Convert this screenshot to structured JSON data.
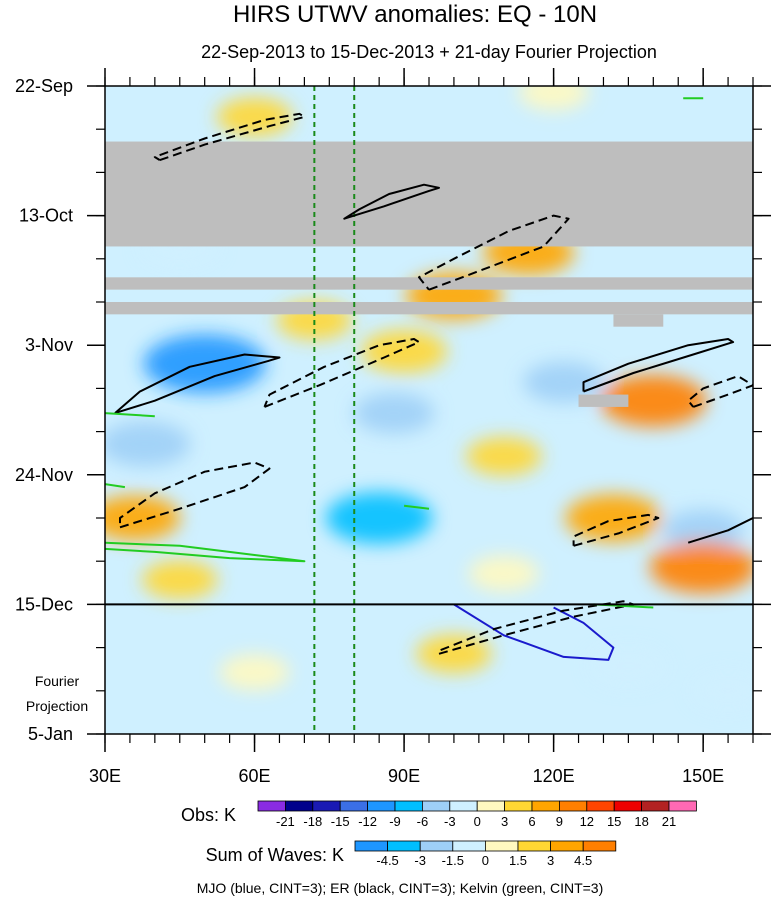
{
  "chart_data": {
    "type": "heatmap",
    "title": "HIRS UTWV anomalies: EQ - 10N",
    "subtitle": "22-Sep-2013 to 15-Dec-2013 + 21-day Fourier Projection",
    "x_axis": {
      "label": "",
      "range": [
        30,
        160
      ],
      "units": "degrees E",
      "ticks": [
        {
          "value": 30,
          "label": "30E"
        },
        {
          "value": 60,
          "label": "60E"
        },
        {
          "value": 90,
          "label": "90E"
        },
        {
          "value": 120,
          "label": "120E"
        },
        {
          "value": 150,
          "label": "150E"
        }
      ],
      "minor_step": 5
    },
    "y_axis": {
      "label": "",
      "range_days": [
        0,
        105
      ],
      "units": "days since 22-Sep-2013",
      "ticks": [
        {
          "value": 0,
          "label": "22-Sep"
        },
        {
          "value": 21,
          "label": "13-Oct"
        },
        {
          "value": 42,
          "label": "3-Nov"
        },
        {
          "value": 63,
          "label": "24-Nov"
        },
        {
          "value": 84,
          "label": "15-Dec"
        },
        {
          "value": 105,
          "label": "5-Jan"
        }
      ],
      "minor_step": 7,
      "projection_label_line1": "Fourier",
      "projection_label_line2": "Projection"
    },
    "projection_start_day": 84,
    "reference_longitudes": [
      72,
      80
    ],
    "missing_data_bands": [
      {
        "day_start": 9,
        "day_end": 26,
        "lon_start": 30,
        "lon_end": 160
      },
      {
        "day_start": 31,
        "day_end": 33,
        "lon_start": 30,
        "lon_end": 160
      },
      {
        "day_start": 35,
        "day_end": 37,
        "lon_start": 30,
        "lon_end": 160
      },
      {
        "day_start": 37,
        "day_end": 39,
        "lon_start": 132,
        "lon_end": 142
      },
      {
        "day_start": 50,
        "day_end": 52,
        "lon_start": 125,
        "lon_end": 135
      }
    ],
    "anomaly_blobs": [
      {
        "lon": 50,
        "day": 45,
        "value": -12
      },
      {
        "lon": 85,
        "day": 70,
        "value": -9
      },
      {
        "lon": 38,
        "day": 58,
        "value": -6
      },
      {
        "lon": 88,
        "day": 53,
        "value": -4
      },
      {
        "lon": 122,
        "day": 48,
        "value": -4
      },
      {
        "lon": 150,
        "day": 72,
        "value": -4
      },
      {
        "lon": 135,
        "day": 94,
        "value": -3
      },
      {
        "lon": 155,
        "day": 98,
        "value": -2
      },
      {
        "lon": 45,
        "day": 26,
        "value": -3
      },
      {
        "lon": 140,
        "day": 51,
        "value": 9
      },
      {
        "lon": 132,
        "day": 70,
        "value": 7
      },
      {
        "lon": 150,
        "day": 78,
        "value": 9
      },
      {
        "lon": 115,
        "day": 27,
        "value": 6
      },
      {
        "lon": 100,
        "day": 34,
        "value": 7
      },
      {
        "lon": 36,
        "day": 70,
        "value": 6
      },
      {
        "lon": 60,
        "day": 5,
        "value": 3
      },
      {
        "lon": 90,
        "day": 43,
        "value": 5
      },
      {
        "lon": 72,
        "day": 38,
        "value": 3
      },
      {
        "lon": 100,
        "day": 92,
        "value": 3
      },
      {
        "lon": 60,
        "day": 95,
        "value": 2
      },
      {
        "lon": 120,
        "day": 1,
        "value": 2
      },
      {
        "lon": 110,
        "day": 60,
        "value": 3
      },
      {
        "lon": 45,
        "day": 80,
        "value": 3
      },
      {
        "lon": 110,
        "day": 79,
        "value": 2
      }
    ],
    "wave_contours": [
      {
        "name": "MJO",
        "style": "solid",
        "color": "#1a1acc",
        "points": [
          [
            100,
            84
          ],
          [
            110,
            89
          ],
          [
            122,
            92.5
          ],
          [
            131,
            93
          ],
          [
            132,
            91
          ],
          [
            126,
            87
          ],
          [
            120,
            84.5
          ]
        ]
      },
      {
        "name": "ER",
        "style": "solid",
        "color": "#000000",
        "points": [
          [
            32,
            53
          ],
          [
            40,
            51
          ],
          [
            52,
            47
          ],
          [
            63,
            44.5
          ],
          [
            65,
            44
          ],
          [
            58,
            43.5
          ],
          [
            47,
            45.5
          ],
          [
            37,
            49.5
          ],
          [
            32,
            53
          ]
        ]
      },
      {
        "name": "ER",
        "style": "solid",
        "color": "#000000",
        "points": [
          [
            80,
            21
          ],
          [
            86,
            19.5
          ],
          [
            95,
            17
          ],
          [
            97,
            16.5
          ],
          [
            94,
            16
          ],
          [
            87,
            17.5
          ],
          [
            81,
            20
          ],
          [
            78,
            21.5
          ],
          [
            80,
            21
          ]
        ]
      },
      {
        "name": "ER",
        "style": "solid",
        "color": "#000000",
        "points": [
          [
            126,
            49.5
          ],
          [
            136,
            46.5
          ],
          [
            148,
            43.5
          ],
          [
            156,
            41.5
          ],
          [
            155,
            41
          ],
          [
            147,
            42
          ],
          [
            135,
            45
          ],
          [
            126,
            48
          ],
          [
            126,
            49.5
          ]
        ]
      },
      {
        "name": "ER",
        "style": "solid",
        "color": "#000000",
        "points": [
          [
            147,
            74
          ],
          [
            155,
            72
          ],
          [
            160,
            70
          ]
        ]
      },
      {
        "name": "ER",
        "style": "dashed",
        "color": "#000000",
        "points": [
          [
            41,
            12
          ],
          [
            50,
            9.5
          ],
          [
            63,
            6.5
          ],
          [
            70,
            5
          ],
          [
            69,
            4.5
          ],
          [
            62,
            5.5
          ],
          [
            50,
            8.5
          ],
          [
            40,
            11.5
          ],
          [
            41,
            12
          ]
        ]
      },
      {
        "name": "ER",
        "style": "dashed",
        "color": "#000000",
        "points": [
          [
            95,
            33
          ],
          [
            105,
            30
          ],
          [
            118,
            26
          ],
          [
            123,
            21.5
          ],
          [
            120,
            21
          ],
          [
            111,
            23.5
          ],
          [
            100,
            28
          ],
          [
            93,
            31
          ],
          [
            95,
            33
          ]
        ]
      },
      {
        "name": "ER",
        "style": "dashed",
        "color": "#000000",
        "points": [
          [
            62,
            52
          ],
          [
            73,
            48.5
          ],
          [
            86,
            44
          ],
          [
            93,
            41.5
          ],
          [
            92,
            41
          ],
          [
            85,
            42
          ],
          [
            74,
            45.5
          ],
          [
            63,
            50
          ],
          [
            62,
            52
          ]
        ]
      },
      {
        "name": "ER",
        "style": "dashed",
        "color": "#000000",
        "points": [
          [
            33,
            71.5
          ],
          [
            45,
            68.5
          ],
          [
            58,
            65
          ],
          [
            63,
            62
          ],
          [
            60,
            61
          ],
          [
            50,
            62.5
          ],
          [
            40,
            66
          ],
          [
            33,
            70
          ],
          [
            33,
            71.5
          ]
        ]
      },
      {
        "name": "ER",
        "style": "dashed",
        "color": "#000000",
        "points": [
          [
            124,
            74.5
          ],
          [
            133,
            72.5
          ],
          [
            141,
            70
          ],
          [
            139,
            69.5
          ],
          [
            131,
            70.5
          ],
          [
            124,
            73
          ],
          [
            124,
            74.5
          ]
        ]
      },
      {
        "name": "ER",
        "style": "dashed",
        "color": "#000000",
        "points": [
          [
            148,
            52
          ],
          [
            155,
            50
          ],
          [
            160,
            48.5
          ],
          [
            157,
            47
          ],
          [
            150,
            49
          ],
          [
            147,
            51
          ],
          [
            148,
            52
          ]
        ]
      },
      {
        "name": "ER",
        "style": "dashed",
        "color": "#000000",
        "points": [
          [
            97,
            92
          ],
          [
            110,
            89
          ],
          [
            124,
            86
          ],
          [
            136,
            84
          ],
          [
            134,
            83.5
          ],
          [
            122,
            85
          ],
          [
            108,
            88
          ],
          [
            97,
            91.5
          ],
          [
            97,
            92
          ]
        ]
      },
      {
        "name": "Kelvin",
        "style": "solid",
        "color": "#22cc22",
        "points": [
          [
            146,
            2
          ],
          [
            150,
            2
          ]
        ]
      },
      {
        "name": "Kelvin",
        "style": "solid",
        "color": "#22cc22",
        "points": [
          [
            30,
            53
          ],
          [
            40,
            53.5
          ]
        ]
      },
      {
        "name": "Kelvin",
        "style": "solid",
        "color": "#22cc22",
        "points": [
          [
            30,
            64.5
          ],
          [
            34,
            65
          ]
        ]
      },
      {
        "name": "Kelvin",
        "style": "solid",
        "color": "#22cc22",
        "points": [
          [
            30,
            75
          ],
          [
            40,
            75.5
          ],
          [
            55,
            76.5
          ],
          [
            70,
            77
          ],
          [
            60,
            76
          ],
          [
            45,
            74.5
          ],
          [
            30,
            74
          ]
        ]
      },
      {
        "name": "Kelvin",
        "style": "solid",
        "color": "#22cc22",
        "points": [
          [
            90,
            68
          ],
          [
            95,
            68.5
          ]
        ]
      },
      {
        "name": "Kelvin",
        "style": "solid",
        "color": "#22cc22",
        "points": [
          [
            128,
            84
          ],
          [
            140,
            84.5
          ]
        ]
      }
    ],
    "obs_colorbar": {
      "title": "Obs: K",
      "labels": [
        "-21",
        "-18",
        "-15",
        "-12",
        "-9",
        "-6",
        "-3",
        "0",
        "3",
        "6",
        "9",
        "12",
        "15",
        "18",
        "21"
      ],
      "colors": [
        "#8a2be2",
        "#00008b",
        "#1a1ab4",
        "#3b6fe6",
        "#1e96ff",
        "#00bfff",
        "#9ecff7",
        "#cff0ff",
        "#fff8c0",
        "#ffd733",
        "#ffa500",
        "#ff7f00",
        "#ff4500",
        "#ee0000",
        "#b22222",
        "#ff69b4"
      ]
    },
    "waves_colorbar": {
      "title": "Sum of Waves: K",
      "labels": [
        "-4.5",
        "-3",
        "-1.5",
        "0",
        "1.5",
        "3",
        "4.5"
      ],
      "colors": [
        "#1e96ff",
        "#00bfff",
        "#9ecff7",
        "#cff0ff",
        "#fff8c0",
        "#ffd733",
        "#ffa500",
        "#ff7f00"
      ]
    },
    "caption": "MJO (blue, CINT=3); ER (black, CINT=3); Kelvin (green, CINT=3)"
  }
}
